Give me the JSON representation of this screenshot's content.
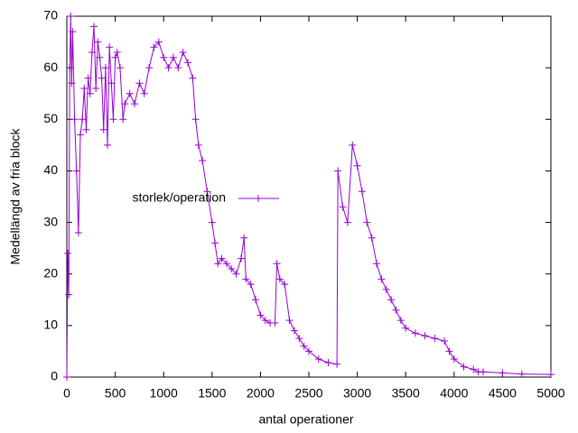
{
  "chart_data": {
    "type": "line",
    "xlabel": "antal operationer",
    "ylabel": "Medellängd av fria block",
    "xlim": [
      0,
      5000
    ],
    "xticks": [
      0,
      500,
      1000,
      1500,
      2000,
      2500,
      3000,
      3500,
      4000,
      4500,
      5000
    ],
    "ylim": [
      0,
      70
    ],
    "yticks": [
      0,
      10,
      20,
      30,
      40,
      50,
      60,
      70
    ],
    "series": [
      {
        "name": "storlek/operation",
        "color": "#9400d3",
        "x": [
          0,
          10,
          20,
          30,
          40,
          50,
          60,
          80,
          100,
          120,
          140,
          160,
          180,
          200,
          220,
          240,
          260,
          280,
          300,
          320,
          340,
          360,
          380,
          400,
          420,
          440,
          460,
          480,
          500,
          520,
          550,
          580,
          600,
          650,
          700,
          750,
          800,
          850,
          900,
          950,
          1000,
          1050,
          1100,
          1150,
          1200,
          1250,
          1300,
          1330,
          1360,
          1400,
          1450,
          1500,
          1530,
          1560,
          1600,
          1650,
          1700,
          1750,
          1800,
          1830,
          1850,
          1900,
          1950,
          2000,
          2050,
          2100,
          2150,
          2170,
          2200,
          2250,
          2300,
          2350,
          2400,
          2450,
          2500,
          2600,
          2700,
          2790,
          2800,
          2850,
          2900,
          2950,
          3000,
          3050,
          3100,
          3150,
          3200,
          3250,
          3300,
          3350,
          3400,
          3450,
          3500,
          3600,
          3700,
          3800,
          3900,
          3950,
          4000,
          4100,
          4200,
          4250,
          4300,
          4500,
          4700,
          5000
        ],
        "values": [
          0,
          24,
          16,
          60,
          70,
          57,
          67,
          50,
          40,
          28,
          47,
          50,
          56,
          48,
          58,
          55,
          63,
          68,
          56,
          65,
          62,
          58,
          48,
          60,
          45,
          64,
          57,
          50,
          62,
          63,
          60,
          50,
          53,
          55,
          53,
          57,
          55,
          60,
          64,
          65,
          62,
          60,
          62,
          60,
          63,
          61,
          58,
          50,
          45,
          42,
          36,
          30,
          26,
          22,
          23,
          22,
          21,
          20,
          23,
          27,
          19,
          18,
          15,
          12,
          11,
          10.5,
          10.5,
          22,
          19,
          18,
          11,
          9,
          7.5,
          6,
          5,
          3.5,
          2.8,
          2.5,
          40,
          33,
          30,
          45,
          41,
          36,
          30,
          27,
          22,
          19,
          17,
          15,
          13,
          11,
          9.5,
          8.5,
          8,
          7.5,
          7,
          5,
          3.5,
          2,
          1.5,
          1,
          1,
          0.8,
          0.6,
          0.5
        ]
      }
    ]
  }
}
